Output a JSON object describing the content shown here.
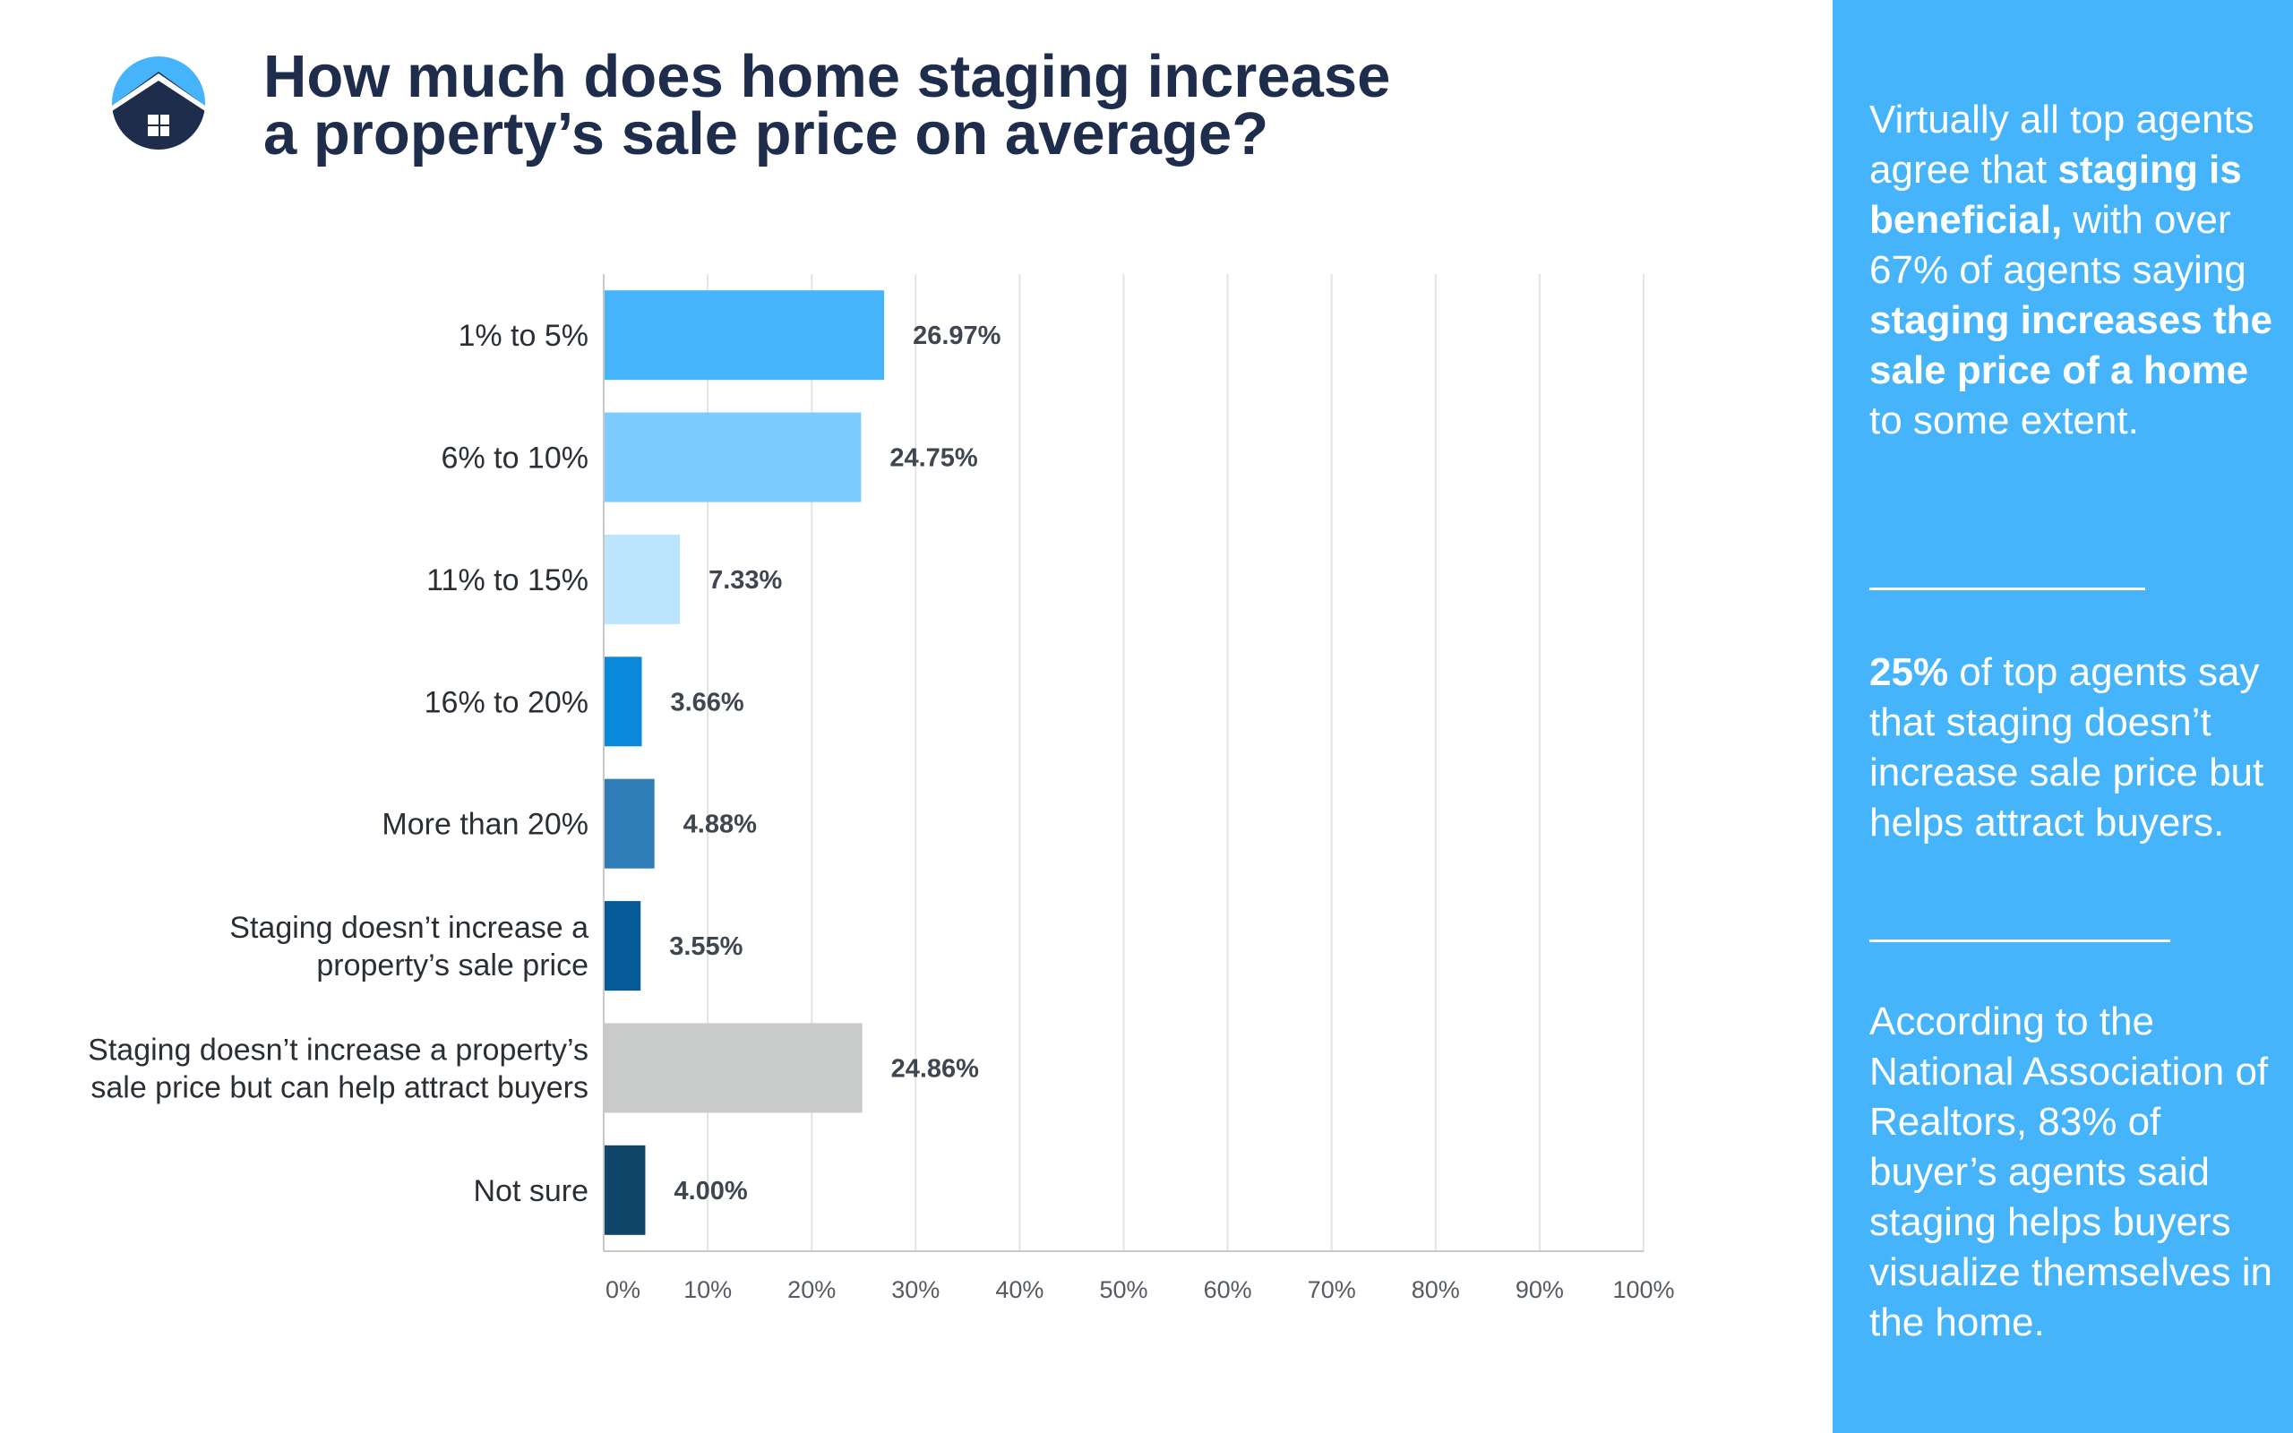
{
  "header": {
    "title_line1": "How much does home staging increase",
    "title_line2": "a property’s sale price on average?"
  },
  "logo": {
    "icon": "house-icon",
    "colors": {
      "top": "#45b4fb",
      "bottom": "#1f2d4d"
    }
  },
  "chart_data": {
    "type": "bar",
    "orientation": "horizontal",
    "categories": [
      [
        "1% to 5%"
      ],
      [
        "6% to 10%"
      ],
      [
        "11% to 15%"
      ],
      [
        "16% to 20%"
      ],
      [
        "More than 20%"
      ],
      [
        "Staging doesn’t increase a",
        "property’s sale price"
      ],
      [
        "Staging doesn’t increase a property’s",
        "sale price but can help attract buyers"
      ],
      [
        "Not sure"
      ]
    ],
    "values": [
      26.97,
      24.75,
      7.33,
      3.66,
      4.88,
      3.55,
      24.86,
      4.0
    ],
    "value_labels": [
      "26.97%",
      "24.75%",
      "7.33%",
      "3.66%",
      "4.88%",
      "3.55%",
      "24.86%",
      "4.00%"
    ],
    "colors": [
      "#45b4fb",
      "#7dcbfd",
      "#bde4fd",
      "#0a88db",
      "#2f7db6",
      "#065a99",
      "#c9cbca",
      "#0f4569"
    ],
    "xlim": [
      0,
      100
    ],
    "xticks": [
      "0%",
      "10%",
      "20%",
      "30%",
      "40%",
      "50%",
      "60%",
      "70%",
      "80%",
      "90%",
      "100%"
    ],
    "grid": true
  },
  "sidebar": {
    "background": "#45b4fb",
    "p1": {
      "t1": "Virtually all top agents agree that ",
      "b1": "staging is beneficial,",
      "t2": " with over 67% of agents saying ",
      "b2": "staging increases the sale price of a home",
      "t3": " to some extent."
    },
    "p2": {
      "b1": "25%",
      "t1": " of top agents say that staging doesn’t increase sale price but helps attract buyers."
    },
    "p3": "According to the National Association of Realtors, 83% of buyer’s agents said staging helps buyers visualize themselves in the home."
  }
}
